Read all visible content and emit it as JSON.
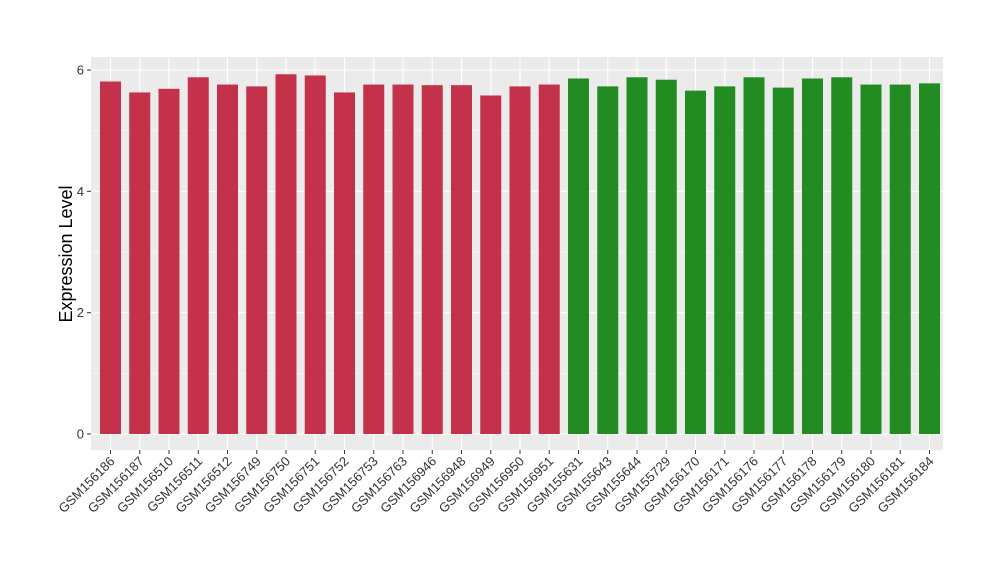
{
  "chart_data": {
    "type": "bar",
    "title": "",
    "xlabel": "",
    "ylabel": "Expression Level",
    "ylim": [
      0,
      6.2
    ],
    "yticks": [
      0,
      2,
      4,
      6
    ],
    "grid": true,
    "legend": "none",
    "colors": {
      "group_1": "#c4314b",
      "group_2": "#228b22",
      "panel_background": "#ebebeb"
    },
    "categories": [
      "GSM156186",
      "GSM156187",
      "GSM156510",
      "GSM156511",
      "GSM156512",
      "GSM156749",
      "GSM156750",
      "GSM156751",
      "GSM156752",
      "GSM156753",
      "GSM156763",
      "GSM156946",
      "GSM156948",
      "GSM156949",
      "GSM156950",
      "GSM156951",
      "GSM155631",
      "GSM155643",
      "GSM155644",
      "GSM155729",
      "GSM156170",
      "GSM156171",
      "GSM156176",
      "GSM156177",
      "GSM156178",
      "GSM156179",
      "GSM156180",
      "GSM156181",
      "GSM156184"
    ],
    "values": [
      5.81,
      5.63,
      5.69,
      5.88,
      5.76,
      5.73,
      5.93,
      5.91,
      5.63,
      5.76,
      5.76,
      5.75,
      5.75,
      5.58,
      5.73,
      5.76,
      5.86,
      5.73,
      5.88,
      5.84,
      5.66,
      5.73,
      5.88,
      5.71,
      5.86,
      5.88,
      5.76,
      5.76,
      5.78
    ],
    "groups": [
      "group_1",
      "group_1",
      "group_1",
      "group_1",
      "group_1",
      "group_1",
      "group_1",
      "group_1",
      "group_1",
      "group_1",
      "group_1",
      "group_1",
      "group_1",
      "group_1",
      "group_1",
      "group_1",
      "group_2",
      "group_2",
      "group_2",
      "group_2",
      "group_2",
      "group_2",
      "group_2",
      "group_2",
      "group_2",
      "group_2",
      "group_2",
      "group_2",
      "group_2"
    ]
  }
}
